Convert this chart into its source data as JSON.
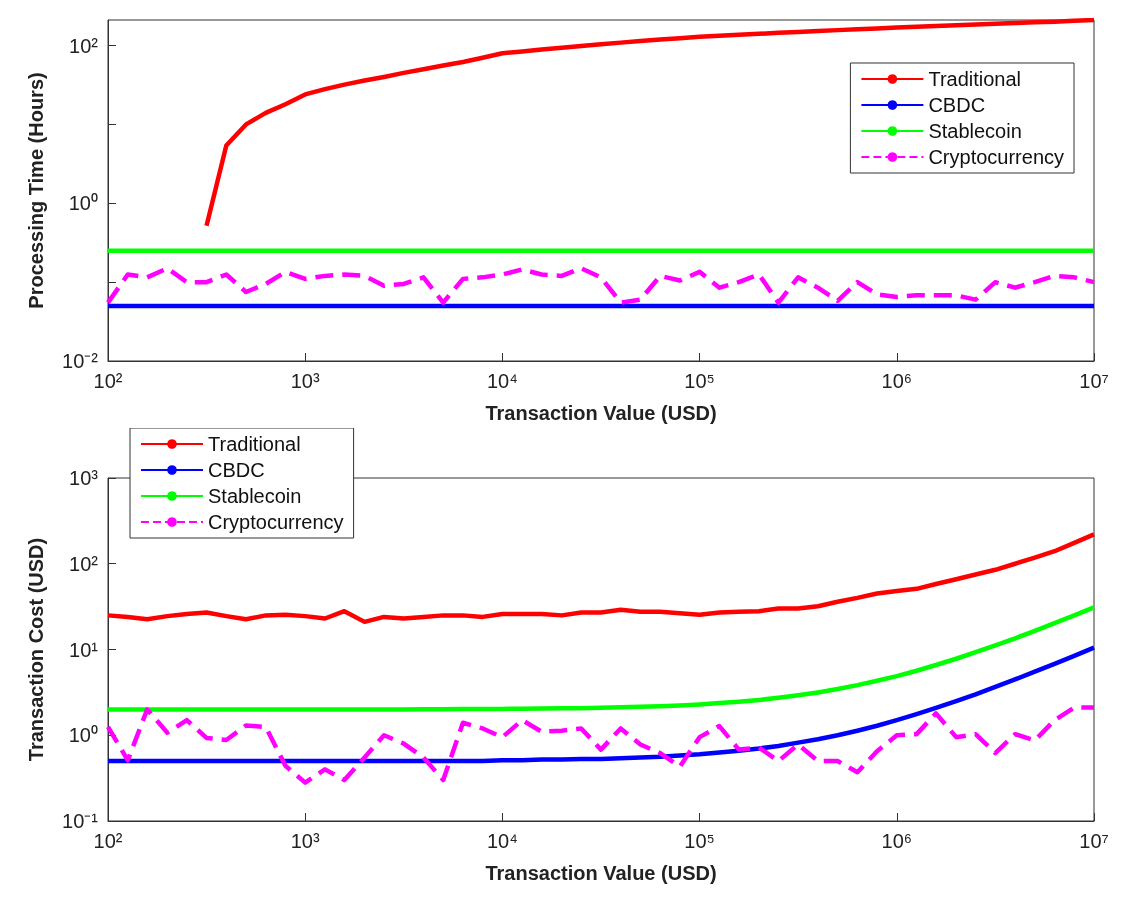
{
  "chart_data": [
    {
      "type": "line",
      "xlabel": "Transaction Value (USD)",
      "ylabel": "Processing Time (Hours)",
      "log": "xy",
      "legend": "top right",
      "marker": "none",
      "xlim": [
        100,
        10000000
      ],
      "xticks": [
        {
          "value": 100,
          "label": "10²"
        },
        {
          "value": 1000,
          "label": "10³"
        },
        {
          "value": 10000,
          "label": "10⁴"
        },
        {
          "value": 100000,
          "label": "10⁵"
        },
        {
          "value": 1000000,
          "label": "10⁶"
        },
        {
          "value": 10000000,
          "label": "10⁷"
        }
      ],
      "ylim": [
        0.01,
        211
      ],
      "yticks": [
        {
          "value": 0.01,
          "label": "10⁻²"
        },
        {
          "value": 0.1,
          "label": null
        },
        {
          "value": 1,
          "label": "10⁰"
        },
        {
          "value": 10,
          "label": null
        },
        {
          "value": 100,
          "label": "10²"
        }
      ],
      "x": [
        100,
        126,
        158,
        200,
        251,
        316,
        398,
        501,
        631,
        794,
        1000,
        1260,
        1580,
        2000,
        2510,
        3160,
        3980,
        5010,
        6310,
        7940,
        10000,
        12600,
        15800,
        20000,
        25100,
        31600,
        39800,
        50100,
        63100,
        79400,
        100000,
        126000,
        158000,
        200000,
        251000,
        316000,
        398000,
        501000,
        631000,
        794000,
        1000000,
        1260000,
        1580000,
        2000000,
        2510000,
        3160000,
        3980000,
        5010000,
        6310000,
        7940000,
        10000000
      ],
      "series": [
        {
          "name": "Traditional",
          "color": "#ff0000",
          "line_style": "solid",
          "values": [
            null,
            null,
            null,
            null,
            null,
            0.52,
            5.4,
            10,
            14,
            18,
            24,
            28,
            32,
            36,
            40,
            45,
            50,
            56,
            62,
            70,
            80,
            84,
            89,
            94,
            99,
            104,
            109,
            114,
            119,
            124,
            129,
            133,
            137,
            141,
            145,
            149,
            153,
            157,
            161,
            165,
            169,
            173,
            177,
            181,
            185,
            189,
            193,
            197,
            201,
            206,
            211
          ]
        },
        {
          "name": "CBDC",
          "color": "#0000ff",
          "line_style": "solid",
          "values": [
            0.05,
            0.05,
            0.05,
            0.05,
            0.05,
            0.05,
            0.05,
            0.05,
            0.05,
            0.05,
            0.05,
            0.05,
            0.05,
            0.05,
            0.05,
            0.05,
            0.05,
            0.05,
            0.05,
            0.05,
            0.05,
            0.05,
            0.05,
            0.05,
            0.05,
            0.05,
            0.05,
            0.05,
            0.05,
            0.05,
            0.05,
            0.05,
            0.05,
            0.05,
            0.05,
            0.05,
            0.05,
            0.05,
            0.05,
            0.05,
            0.05,
            0.05,
            0.05,
            0.05,
            0.05,
            0.05,
            0.05,
            0.05,
            0.05,
            0.05,
            0.05
          ]
        },
        {
          "name": "Stablecoin",
          "color": "#00ff00",
          "line_style": "solid",
          "values": [
            0.25,
            0.25,
            0.25,
            0.25,
            0.25,
            0.25,
            0.25,
            0.25,
            0.25,
            0.25,
            0.25,
            0.25,
            0.25,
            0.25,
            0.25,
            0.25,
            0.25,
            0.25,
            0.25,
            0.25,
            0.25,
            0.25,
            0.25,
            0.25,
            0.25,
            0.25,
            0.25,
            0.25,
            0.25,
            0.25,
            0.25,
            0.25,
            0.25,
            0.25,
            0.25,
            0.25,
            0.25,
            0.25,
            0.25,
            0.25,
            0.25,
            0.25,
            0.25,
            0.25,
            0.25,
            0.25,
            0.25,
            0.25,
            0.25,
            0.25,
            0.25
          ]
        },
        {
          "name": "Cryptocurrency",
          "color": "#ff00ff",
          "line_style": "dashed",
          "values": [
            0.055,
            0.125,
            0.115,
            0.15,
            0.1,
            0.1,
            0.125,
            0.075,
            0.095,
            0.135,
            0.11,
            0.12,
            0.125,
            0.12,
            0.09,
            0.095,
            0.115,
            0.055,
            0.11,
            0.115,
            0.125,
            0.145,
            0.125,
            0.12,
            0.15,
            0.115,
            0.055,
            0.06,
            0.12,
            0.105,
            0.135,
            0.085,
            0.1,
            0.125,
            0.055,
            0.115,
            0.085,
            0.058,
            0.1,
            0.07,
            0.065,
            0.068,
            0.068,
            0.068,
            0.06,
            0.1,
            0.085,
            0.1,
            0.12,
            0.115,
            0.1
          ]
        }
      ]
    },
    {
      "type": "line",
      "xlabel": "Transaction Value (USD)",
      "ylabel": "Transaction Cost (USD)",
      "log": "xy",
      "legend": "top left",
      "marker": "none",
      "xlim": [
        100,
        10000000
      ],
      "xticks": [
        {
          "value": 100,
          "label": "10²"
        },
        {
          "value": 1000,
          "label": "10³"
        },
        {
          "value": 10000,
          "label": "10⁴"
        },
        {
          "value": 100000,
          "label": "10⁵"
        },
        {
          "value": 1000000,
          "label": "10⁶"
        },
        {
          "value": 10000000,
          "label": "10⁷"
        }
      ],
      "ylim": [
        0.1,
        1000
      ],
      "yticks": [
        {
          "value": 0.1,
          "label": "10⁻¹"
        },
        {
          "value": 1,
          "label": "10⁰"
        },
        {
          "value": 10,
          "label": "10¹"
        },
        {
          "value": 100,
          "label": "10²"
        },
        {
          "value": 1000,
          "label": "10³"
        }
      ],
      "x": [
        100,
        126,
        158,
        200,
        251,
        316,
        398,
        501,
        631,
        794,
        1000,
        1260,
        1580,
        2000,
        2510,
        3160,
        3980,
        5010,
        6310,
        7940,
        10000,
        12600,
        15800,
        20000,
        25100,
        31600,
        39800,
        50100,
        63100,
        79400,
        100000,
        126000,
        158000,
        200000,
        251000,
        316000,
        398000,
        501000,
        631000,
        794000,
        1000000,
        1260000,
        1580000,
        2000000,
        2510000,
        3160000,
        3980000,
        5010000,
        6310000,
        7940000,
        10000000
      ],
      "series": [
        {
          "name": "Traditional",
          "color": "#ff0000",
          "line_style": "solid",
          "values": [
            25,
            24,
            22.5,
            24.5,
            26,
            27,
            24.5,
            22.5,
            25,
            25.5,
            24.5,
            23,
            28,
            21,
            24,
            23,
            24,
            25,
            25,
            24,
            26,
            26,
            26,
            25,
            27,
            27,
            29,
            27.5,
            27.5,
            26.5,
            25.5,
            27,
            27.5,
            28,
            30,
            30,
            32,
            36,
            40,
            45,
            48,
            51,
            58,
            66,
            75,
            85,
            100,
            118,
            140,
            175,
            220
          ]
        },
        {
          "name": "CBDC",
          "color": "#0000ff",
          "line_style": "solid",
          "values": [
            0.5,
            0.5,
            0.5,
            0.5,
            0.5,
            0.5,
            0.5,
            0.5,
            0.5,
            0.5,
            0.5,
            0.5,
            0.5,
            0.5,
            0.5,
            0.5,
            0.5,
            0.5,
            0.5,
            0.5,
            0.51,
            0.51,
            0.52,
            0.52,
            0.53,
            0.53,
            0.54,
            0.55,
            0.56,
            0.58,
            0.6,
            0.63,
            0.66,
            0.7,
            0.75,
            0.82,
            0.9,
            1.0,
            1.13,
            1.29,
            1.5,
            1.76,
            2.08,
            2.5,
            3.0,
            3.66,
            4.48,
            5.51,
            6.81,
            8.44,
            10.5
          ]
        },
        {
          "name": "Stablecoin",
          "color": "#00ff00",
          "line_style": "solid",
          "values": [
            2,
            2,
            2,
            2,
            2,
            2,
            2,
            2,
            2,
            2,
            2,
            2,
            2,
            2,
            2,
            2,
            2.01,
            2.01,
            2.02,
            2.02,
            2.03,
            2.04,
            2.05,
            2.06,
            2.07,
            2.09,
            2.12,
            2.15,
            2.18,
            2.23,
            2.29,
            2.37,
            2.46,
            2.58,
            2.73,
            2.92,
            3.16,
            3.46,
            3.84,
            4.32,
            4.9,
            5.65,
            6.6,
            7.8,
            9.3,
            11.2,
            13.5,
            16.5,
            20.3,
            25,
            31
          ]
        },
        {
          "name": "Cryptocurrency",
          "color": "#ff00ff",
          "line_style": "dashed",
          "values": [
            1.25,
            0.51,
            2.0,
            1.07,
            1.5,
            0.93,
            0.88,
            1.3,
            1.25,
            0.44,
            0.28,
            0.4,
            0.3,
            0.55,
            1.0,
            0.8,
            0.55,
            0.3,
            1.4,
            1.2,
            0.95,
            1.5,
            1.1,
            1.13,
            1.2,
            0.68,
            1.2,
            0.78,
            0.62,
            0.43,
            0.95,
            1.28,
            0.68,
            0.72,
            0.5,
            0.78,
            0.5,
            0.5,
            0.37,
            0.65,
            1.0,
            1.03,
            1.8,
            0.95,
            1.03,
            0.62,
            1.03,
            0.87,
            1.5,
            2.1,
            2.1
          ]
        }
      ]
    }
  ]
}
